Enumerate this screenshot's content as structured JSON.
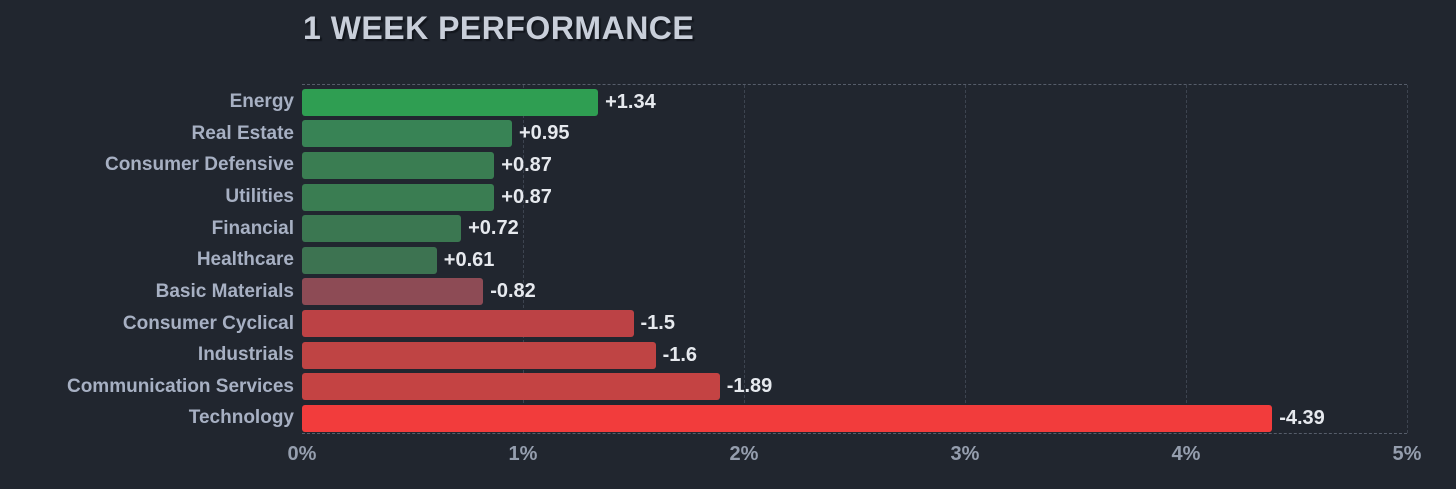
{
  "title": "1 WEEK PERFORMANCE",
  "colors": {
    "background": "#21262f",
    "title_text": "#c9cfda",
    "category_text": "#a7b0c3",
    "value_text": "#e6e9ee",
    "tick_text": "#959eae",
    "gridline": "#3d4450",
    "plot_border": "#565d6a",
    "positive_accent": "#2f9e52",
    "negative_accent": "#f23c3c"
  },
  "chart_data": {
    "type": "bar",
    "orientation": "horizontal",
    "title": "1 WEEK PERFORMANCE",
    "xlabel": "",
    "ylabel": "",
    "xlim": [
      0,
      5
    ],
    "x_tick_labels": [
      "0%",
      "1%",
      "2%",
      "3%",
      "4%",
      "5%"
    ],
    "grid": "vertical-dashed",
    "legend_position": "none",
    "categories": [
      "Energy",
      "Real Estate",
      "Consumer Defensive",
      "Utilities",
      "Financial",
      "Healthcare",
      "Basic Materials",
      "Consumer Cyclical",
      "Industrials",
      "Communication Services",
      "Technology"
    ],
    "values": [
      1.34,
      0.95,
      0.87,
      0.87,
      0.72,
      0.61,
      -0.82,
      -1.5,
      -1.6,
      -1.89,
      -4.39
    ],
    "value_labels": [
      "+1.34",
      "+0.95",
      "+0.87",
      "+0.87",
      "+0.72",
      "+0.61",
      "-0.82",
      "-1.5",
      "-1.6",
      "-1.89",
      "-4.39"
    ],
    "bar_colors": [
      "#2f9e52",
      "#388355",
      "#3a7d52",
      "#3a7d52",
      "#3b7751",
      "#3d7351",
      "#8d4b55",
      "#bc4245",
      "#bf4444",
      "#c44343",
      "#f23c3c"
    ]
  }
}
